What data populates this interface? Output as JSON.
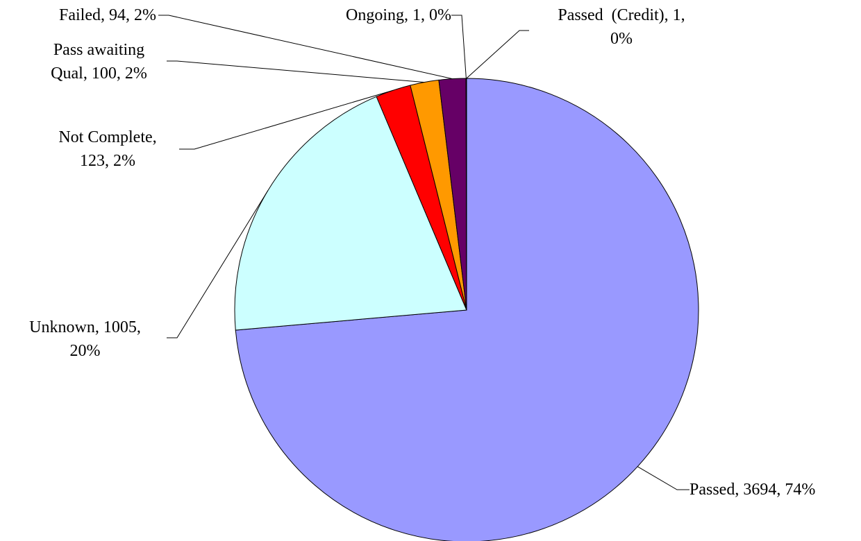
{
  "chart_data": {
    "type": "pie",
    "values": [
      3694,
      1005,
      123,
      100,
      94,
      1,
      1
    ],
    "value_labels": [
      "Passed, 3694, 74%",
      "Unknown, 1005,\n20%",
      "Not Complete,\n123, 2%",
      "Pass awaiting\nQual, 100, 2%",
      "Failed, 94, 2%",
      "Ongoing, 1, 0%",
      "Passed  (Credit), 1,\n0%"
    ],
    "colors": [
      "#9999ff",
      "#ccffff",
      "#ff0000",
      "#ff9900",
      "#660066",
      "#3366ff",
      "#ffff99"
    ]
  }
}
